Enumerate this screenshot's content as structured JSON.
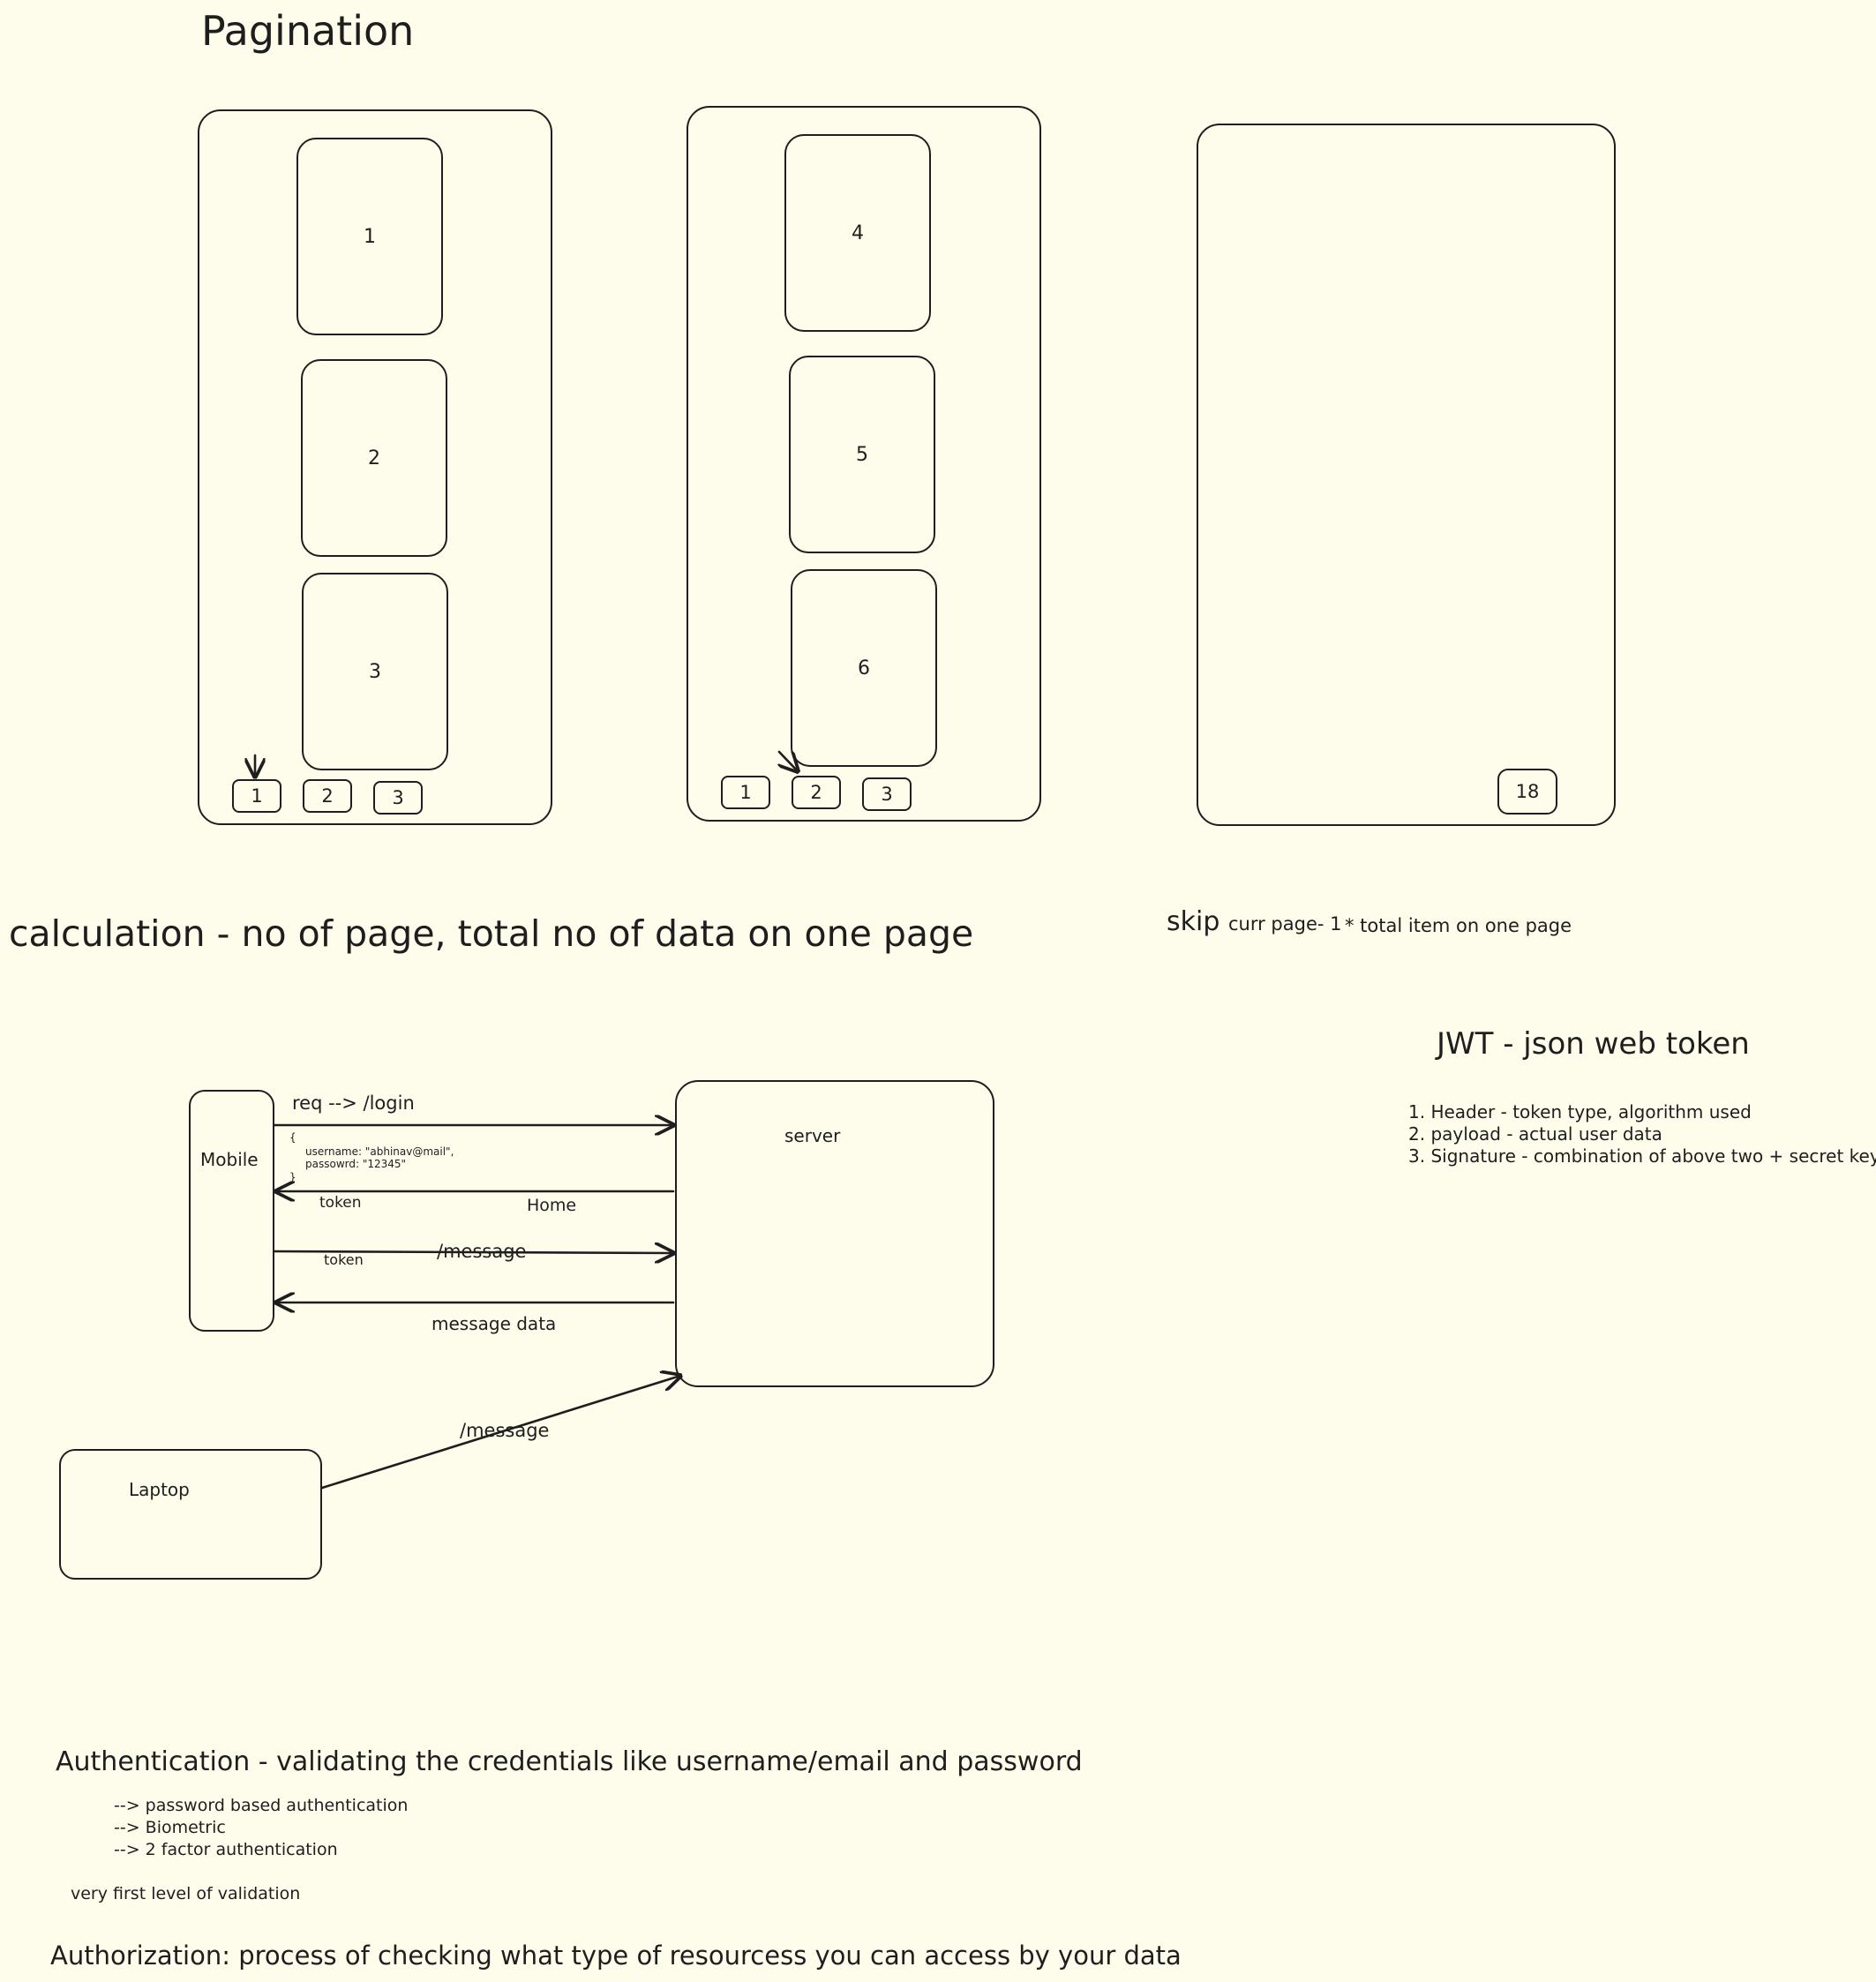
{
  "pagination": {
    "title": "Pagination",
    "panel1": {
      "cards": [
        "1",
        "2",
        "3"
      ],
      "buttons": [
        "1",
        "2",
        "3"
      ]
    },
    "panel2": {
      "cards": [
        "4",
        "5",
        "6"
      ],
      "buttons": [
        "1",
        "2",
        "3"
      ]
    },
    "panel3": {
      "button": "18"
    },
    "calculation": "calculation - no of page, total no of data on one page",
    "skip": {
      "word": "skip",
      "formula_a": "curr page- 1",
      "formula_b": "* total item on one page"
    }
  },
  "jwt": {
    "title": "JWT - json web token",
    "items": [
      "1. Header - token type, algorithm used",
      "2. payload - actual user data",
      "3. Signature - combination of above two + secret key"
    ]
  },
  "flow": {
    "mobile": "Mobile",
    "server": "server",
    "laptop": "Laptop",
    "req_login": "req --> /login",
    "credentials": [
      "{",
      "username: \"abhinav@mail\",",
      "passowrd: \"12345\"",
      "}"
    ],
    "token_1": "token",
    "home": "Home",
    "token_2": "token",
    "message_1": "/message",
    "message_data": "message data",
    "message_2": "/message"
  },
  "auth": {
    "authentication": "Authentication - validating the credentials like username/email and password",
    "methods": [
      "--> password based authentication",
      "--> Biometric",
      "--> 2 factor authentication"
    ],
    "level": "very first level of validation",
    "authorization": "Authorization: process of checking what type of resourcess you can access by your data"
  },
  "colors": {
    "background": "#fefdec",
    "ink": "#1e1e1e"
  }
}
